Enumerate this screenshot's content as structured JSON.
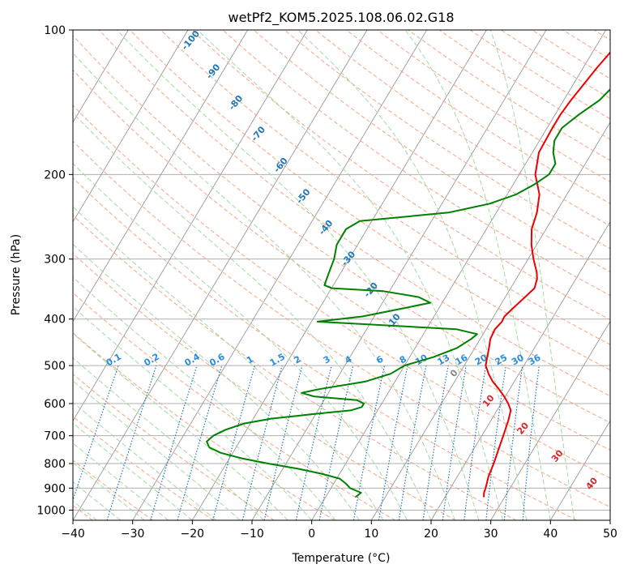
{
  "chart_data": {
    "type": "skewt",
    "title": "wetPf2_KOM5.2025.108.06.02.G18",
    "xlabel": "Temperature (°C)",
    "ylabel": "Pressure (hPa)",
    "xlim": [
      -40,
      50
    ],
    "ylim": [
      1050,
      100
    ],
    "y_scale": "log",
    "x_ticks": [
      "−40",
      "−30",
      "−20",
      "−10",
      "0",
      "10",
      "20",
      "30",
      "40",
      "50"
    ],
    "y_ticks": [
      "100",
      "200",
      "300",
      "400",
      "500",
      "600",
      "700",
      "800",
      "900",
      "1000"
    ],
    "grid": true,
    "dry_adiabat_labels": [
      "-100",
      "-90",
      "-80",
      "-70",
      "-60",
      "-50",
      "-40",
      "-30",
      "-20",
      "-10",
      "0",
      "10",
      "20",
      "30",
      "40"
    ],
    "mixing_ratio_labels": [
      "0.1",
      "0.2",
      "0.4",
      "0.6",
      "1",
      "1.5",
      "2",
      "3",
      "4",
      "6",
      "8",
      "10",
      "13",
      "16",
      "20",
      "25",
      "30",
      "36"
    ],
    "colors": {
      "temperature": "#ee0000",
      "dewpoint": "#008000",
      "dry_adiabat": "#f4a582",
      "moist_adiabat": "#a6d8a6",
      "mixing_ratio": "#1f77b4",
      "isotherm": "#999999",
      "label_cold": "#1f77b4",
      "label_zero": "#888888",
      "label_warm": "#d62728"
    },
    "series": [
      {
        "name": "",
        "role": "temperature",
        "pressure": [
          940,
          920,
          900,
          850,
          800,
          750,
          700,
          650,
          620,
          600,
          580,
          560,
          540,
          520,
          500,
          480,
          460,
          440,
          420,
          405,
          395,
          380,
          360,
          345,
          330,
          320,
          300,
          280,
          260,
          240,
          220,
          200,
          180,
          160,
          150,
          140,
          120,
          110,
          100
        ],
        "values": [
          26.5,
          26.1,
          25.9,
          25.2,
          24.8,
          24.2,
          23.6,
          22.9,
          22.3,
          21.2,
          19.8,
          18.2,
          16.4,
          14.9,
          13.6,
          13.0,
          12.4,
          11.7,
          11.5,
          11.9,
          11.8,
          12.4,
          13.3,
          14.0,
          13.5,
          12.8,
          10.9,
          9.1,
          7.6,
          6.8,
          5.4,
          2.7,
          1.1,
          0.9,
          0.9,
          1.2,
          2.3,
          3.1,
          4.1
        ]
      },
      {
        "name": "",
        "role": "dewpoint",
        "pressure": [
          940,
          920,
          900,
          880,
          860,
          840,
          820,
          800,
          780,
          760,
          740,
          720,
          700,
          680,
          660,
          645,
          630,
          620,
          610,
          600,
          590,
          580,
          570,
          560,
          540,
          520,
          500,
          480,
          460,
          440,
          430,
          420,
          405,
          395,
          380,
          370,
          360,
          350,
          345,
          340,
          320,
          300,
          280,
          260,
          250,
          240,
          230,
          220,
          210,
          200,
          190,
          180,
          170,
          160,
          150,
          140,
          130,
          120,
          110,
          100
        ],
        "values": [
          5.0,
          5.5,
          3.2,
          2.0,
          0.5,
          -3.0,
          -7.5,
          -13.0,
          -18.0,
          -22.0,
          -24.5,
          -25.5,
          -25.0,
          -23.5,
          -21.0,
          -17.0,
          -10.0,
          -4.5,
          -3.0,
          -3.0,
          -4.5,
          -12.0,
          -14.5,
          -12.0,
          -5.0,
          -1.5,
          0.0,
          4.0,
          7.0,
          8.5,
          9.0,
          5.0,
          -19.0,
          -12.0,
          -6.0,
          -2.0,
          -4.5,
          -11.0,
          -20.0,
          -21.5,
          -22.0,
          -22.5,
          -23.5,
          -23.5,
          -22.0,
          -8.0,
          -2.0,
          1.5,
          3.5,
          5.0,
          5.0,
          3.5,
          2.5,
          2.5,
          4.0,
          6.0,
          7.0,
          8.0,
          10.5,
          13.0
        ]
      }
    ]
  }
}
